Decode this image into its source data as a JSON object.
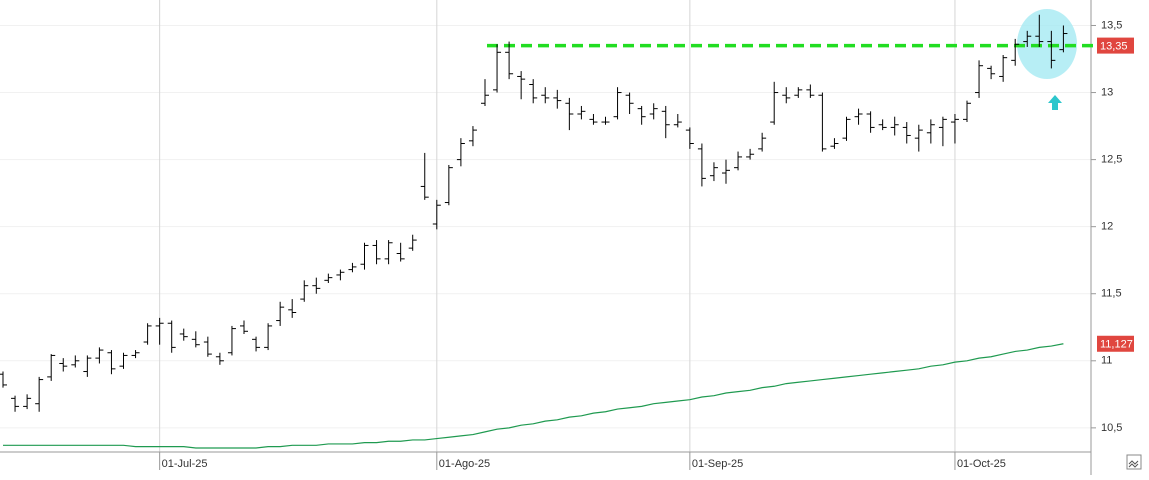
{
  "chart_data": {
    "type": "ohlc",
    "color": "#000000",
    "categories": [
      null,
      null,
      null,
      null,
      null,
      null,
      null,
      null,
      null,
      null,
      null,
      null,
      null,
      "01-Jul-25",
      null,
      null,
      null,
      null,
      null,
      null,
      null,
      null,
      null,
      null,
      null,
      null,
      null,
      null,
      null,
      null,
      null,
      null,
      null,
      null,
      null,
      null,
      "01-Ago-25",
      null,
      null,
      null,
      null,
      null,
      null,
      null,
      null,
      null,
      null,
      null,
      null,
      null,
      null,
      null,
      null,
      null,
      null,
      null,
      null,
      "01-Sep-25",
      null,
      null,
      null,
      null,
      null,
      null,
      null,
      null,
      null,
      null,
      null,
      null,
      null,
      null,
      null,
      null,
      null,
      null,
      null,
      null,
      null,
      "01-Oct-25",
      null,
      null,
      null,
      null,
      null,
      null,
      null,
      null,
      null
    ],
    "open": [
      10.9,
      10.72,
      10.66,
      10.68,
      10.88,
      10.98,
      10.97,
      10.92,
      11.02,
      11.06,
      10.96,
      11.04,
      11.14,
      11.26,
      11.28,
      11.2,
      11.16,
      11.14,
      11.03,
      11.06,
      11.26,
      11.16,
      11.1,
      11.3,
      11.38,
      11.46,
      11.56,
      11.6,
      11.64,
      11.68,
      11.72,
      11.86,
      11.76,
      11.8,
      11.84,
      12.3,
      12.02,
      12.18,
      12.5,
      12.64,
      12.92,
      13.02,
      13.3,
      13.12,
      13.06,
      12.98,
      12.96,
      12.92,
      12.84,
      12.8,
      12.78,
      12.82,
      12.98,
      12.88,
      12.84,
      12.86,
      12.76,
      12.72,
      12.58,
      12.38,
      12.4,
      12.44,
      12.52,
      12.58,
      12.78,
      12.98,
      12.98,
      13.02,
      12.98,
      12.6,
      12.66,
      12.82,
      12.84,
      12.76,
      12.74,
      12.74,
      12.66,
      12.7,
      12.74,
      12.78,
      12.8,
      13.0,
      13.18,
      13.12,
      13.24,
      13.38,
      13.42,
      13.38,
      13.32
    ],
    "high": [
      10.92,
      10.74,
      10.75,
      10.88,
      11.05,
      11.02,
      11.04,
      11.04,
      11.1,
      11.08,
      11.06,
      11.08,
      11.28,
      11.32,
      11.3,
      11.24,
      11.22,
      11.18,
      11.06,
      11.26,
      11.3,
      11.18,
      11.28,
      11.44,
      11.46,
      11.6,
      11.62,
      11.65,
      11.68,
      11.73,
      11.88,
      11.9,
      11.9,
      11.88,
      11.94,
      12.55,
      12.2,
      12.46,
      12.66,
      12.75,
      13.1,
      13.36,
      13.38,
      13.16,
      13.1,
      13.04,
      13.02,
      12.96,
      12.9,
      12.84,
      12.82,
      13.04,
      13.0,
      12.9,
      12.92,
      12.9,
      12.84,
      12.74,
      12.62,
      12.48,
      12.5,
      12.56,
      12.58,
      12.7,
      13.08,
      13.04,
      13.04,
      13.06,
      13.0,
      12.66,
      12.82,
      12.88,
      12.86,
      12.8,
      12.82,
      12.78,
      12.76,
      12.8,
      12.82,
      12.84,
      12.94,
      13.24,
      13.2,
      13.28,
      13.4,
      13.46,
      13.58,
      13.46,
      13.5
    ],
    "low": [
      10.8,
      10.62,
      10.64,
      10.62,
      10.85,
      10.92,
      10.95,
      10.88,
      10.98,
      10.9,
      10.94,
      11.02,
      11.12,
      11.12,
      11.06,
      11.15,
      11.1,
      11.03,
      10.97,
      11.04,
      11.2,
      11.07,
      11.08,
      11.26,
      11.32,
      11.44,
      11.5,
      11.58,
      11.6,
      11.66,
      11.68,
      11.72,
      11.72,
      11.74,
      11.82,
      12.2,
      11.98,
      12.16,
      12.45,
      12.6,
      12.9,
      13.0,
      13.1,
      12.95,
      12.92,
      12.92,
      12.88,
      12.72,
      12.8,
      12.76,
      12.76,
      12.8,
      12.84,
      12.76,
      12.8,
      12.66,
      12.74,
      12.58,
      12.3,
      12.34,
      12.32,
      12.42,
      12.5,
      12.56,
      12.76,
      12.92,
      12.96,
      12.96,
      12.56,
      12.58,
      12.64,
      12.76,
      12.7,
      12.72,
      12.68,
      12.62,
      12.56,
      12.62,
      12.6,
      12.62,
      12.78,
      12.96,
      13.1,
      13.08,
      13.2,
      13.34,
      13.34,
      13.18,
      13.3
    ],
    "close": [
      10.82,
      10.66,
      10.72,
      10.86,
      11.04,
      10.96,
      11.0,
      11.02,
      11.08,
      10.94,
      11.04,
      11.06,
      11.26,
      11.28,
      11.1,
      11.18,
      11.12,
      11.05,
      11.0,
      11.24,
      11.22,
      11.1,
      11.26,
      11.4,
      11.36,
      11.56,
      11.54,
      11.62,
      11.66,
      11.7,
      11.86,
      11.76,
      11.88,
      11.76,
      11.9,
      12.22,
      12.16,
      12.44,
      12.62,
      12.72,
      12.98,
      13.3,
      13.14,
      13.1,
      12.96,
      12.96,
      12.94,
      12.84,
      12.86,
      12.78,
      12.78,
      13.0,
      12.92,
      12.82,
      12.88,
      12.76,
      12.78,
      12.62,
      12.36,
      12.44,
      12.42,
      12.52,
      12.54,
      12.66,
      13.0,
      12.96,
      13.02,
      12.98,
      12.58,
      12.62,
      12.8,
      12.84,
      12.74,
      12.74,
      12.76,
      12.68,
      12.72,
      12.76,
      12.8,
      12.8,
      12.92,
      13.2,
      13.14,
      13.26,
      13.36,
      13.42,
      13.38,
      13.24,
      13.44
    ],
    "moving_average": {
      "color": "#1f9a50",
      "values": [
        10.37,
        10.37,
        10.37,
        10.37,
        10.37,
        10.37,
        10.37,
        10.37,
        10.37,
        10.37,
        10.37,
        10.36,
        10.36,
        10.36,
        10.36,
        10.36,
        10.35,
        10.35,
        10.35,
        10.35,
        10.35,
        10.35,
        10.36,
        10.36,
        10.37,
        10.37,
        10.37,
        10.38,
        10.38,
        10.38,
        10.39,
        10.39,
        10.4,
        10.4,
        10.41,
        10.41,
        10.42,
        10.43,
        10.44,
        10.45,
        10.47,
        10.49,
        10.5,
        10.52,
        10.53,
        10.55,
        10.56,
        10.58,
        10.59,
        10.61,
        10.62,
        10.64,
        10.65,
        10.66,
        10.68,
        10.69,
        10.7,
        10.71,
        10.73,
        10.74,
        10.76,
        10.77,
        10.78,
        10.8,
        10.81,
        10.83,
        10.84,
        10.85,
        10.86,
        10.87,
        10.88,
        10.89,
        10.9,
        10.91,
        10.92,
        10.93,
        10.94,
        10.96,
        10.97,
        10.99,
        11.0,
        11.02,
        11.03,
        11.05,
        11.07,
        11.08,
        11.1,
        11.11,
        11.127
      ],
      "last_label": {
        "value": 11.127,
        "label": "11,127"
      }
    },
    "resistance": {
      "value": 13.35,
      "label": "13,35",
      "color": "#22dd22"
    },
    "ylim": [
      10.32,
      13.69
    ],
    "yticks": [
      {
        "value": 10.5,
        "label": "10,5"
      },
      11,
      {
        "value": 11.5,
        "label": "11,5"
      },
      12,
      {
        "value": 12.5,
        "label": "12,5"
      },
      13,
      {
        "value": 13.5,
        "label": "13,5"
      }
    ],
    "grid": true
  }
}
